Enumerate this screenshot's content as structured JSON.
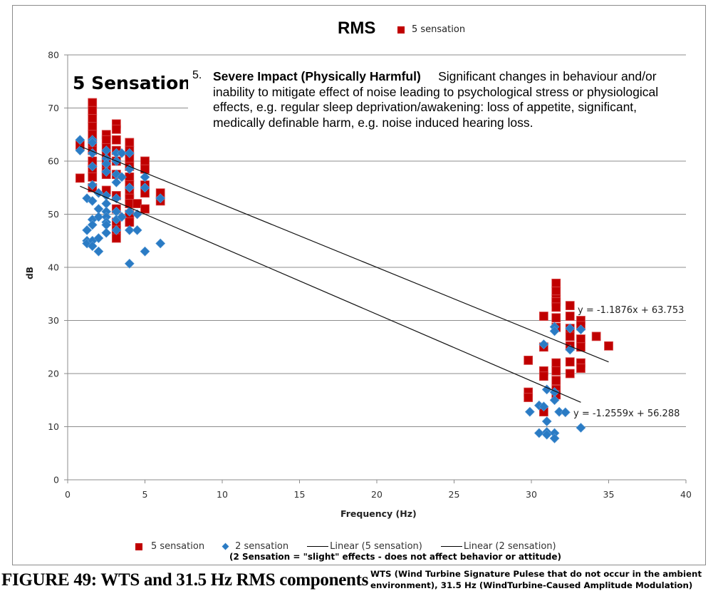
{
  "chart_data": {
    "type": "scatter",
    "title": "RMS",
    "xlabel": "Frequency (Hz)",
    "ylabel": "dB",
    "xlim": [
      0,
      40
    ],
    "ylim": [
      0,
      80
    ],
    "x_ticks": [
      "0",
      "5",
      "10",
      "15",
      "20",
      "25",
      "30",
      "35",
      "40"
    ],
    "y_ticks": [
      "0",
      "10",
      "20",
      "30",
      "40",
      "50",
      "60",
      "70",
      "80"
    ],
    "grid": "horizontal",
    "legend_top": {
      "label": "5 sensation",
      "color": "#c00000"
    },
    "legend": [
      {
        "label": "5 sensation",
        "marker": "square",
        "color": "#c00000"
      },
      {
        "label": "2 sensation",
        "marker": "diamond",
        "color": "#2a7bc4"
      },
      {
        "label": "Linear (5 sensation)",
        "marker": "line",
        "color": "#000000"
      },
      {
        "label": "Linear (2 sensation)",
        "marker": "line",
        "color": "#000000"
      }
    ],
    "series": [
      {
        "name": "5 sensation",
        "marker": "square",
        "color": "#c00000",
        "points": [
          [
            0.8,
            63
          ],
          [
            0.8,
            56.8
          ],
          [
            1.6,
            71
          ],
          [
            1.6,
            69.5
          ],
          [
            1.6,
            68
          ],
          [
            1.6,
            66.5
          ],
          [
            1.6,
            65
          ],
          [
            1.6,
            63.5
          ],
          [
            1.6,
            62
          ],
          [
            1.6,
            60
          ],
          [
            1.6,
            58.5
          ],
          [
            1.6,
            57
          ],
          [
            1.6,
            55
          ],
          [
            2.5,
            65
          ],
          [
            2.5,
            64
          ],
          [
            2.5,
            62.5
          ],
          [
            2.5,
            61
          ],
          [
            2.5,
            59.5
          ],
          [
            2.5,
            58
          ],
          [
            2.5,
            57.5
          ],
          [
            2.5,
            54.5
          ],
          [
            3.15,
            67
          ],
          [
            3.15,
            66
          ],
          [
            3.15,
            64
          ],
          [
            3.15,
            62
          ],
          [
            3.15,
            60
          ],
          [
            3.15,
            57.5
          ],
          [
            3.15,
            53.5
          ],
          [
            3.15,
            51
          ],
          [
            3.15,
            48.5
          ],
          [
            3.15,
            47
          ],
          [
            3.15,
            45.5
          ],
          [
            4,
            63.5
          ],
          [
            4,
            62
          ],
          [
            4,
            60.5
          ],
          [
            4,
            59
          ],
          [
            4,
            57
          ],
          [
            4,
            55.5
          ],
          [
            4,
            54
          ],
          [
            4,
            53
          ],
          [
            4,
            52
          ],
          [
            4,
            50
          ],
          [
            4,
            48.5
          ],
          [
            4.5,
            52
          ],
          [
            5,
            60
          ],
          [
            5,
            58.5
          ],
          [
            5,
            55.5
          ],
          [
            5,
            54
          ],
          [
            5,
            51
          ],
          [
            6,
            54
          ],
          [
            6,
            52.5
          ]
        ]
      },
      {
        "name": "2 sensation",
        "marker": "diamond",
        "color": "#2a7bc4",
        "points": [
          [
            0.8,
            64
          ],
          [
            0.8,
            62
          ],
          [
            1.25,
            53
          ],
          [
            1.25,
            47
          ],
          [
            1.25,
            45
          ],
          [
            1.25,
            44.5
          ],
          [
            1.6,
            64
          ],
          [
            1.6,
            63.5
          ],
          [
            1.6,
            61.5
          ],
          [
            1.6,
            59
          ],
          [
            1.6,
            55.5
          ],
          [
            1.6,
            52.5
          ],
          [
            1.6,
            49
          ],
          [
            1.6,
            48
          ],
          [
            1.6,
            45
          ],
          [
            1.6,
            44
          ],
          [
            2,
            54
          ],
          [
            2,
            51
          ],
          [
            2,
            49.5
          ],
          [
            2,
            45.5
          ],
          [
            2,
            43
          ],
          [
            2.5,
            62
          ],
          [
            2.5,
            60.5
          ],
          [
            2.5,
            59.5
          ],
          [
            2.5,
            58
          ],
          [
            2.5,
            53.5
          ],
          [
            2.5,
            52
          ],
          [
            2.5,
            50.5
          ],
          [
            2.5,
            49.5
          ],
          [
            2.5,
            48.5
          ],
          [
            2.5,
            48
          ],
          [
            2.5,
            46.5
          ],
          [
            3.15,
            61.5
          ],
          [
            3.15,
            60
          ],
          [
            3.15,
            57.5
          ],
          [
            3.15,
            56
          ],
          [
            3.15,
            53
          ],
          [
            3.15,
            50.5
          ],
          [
            3.15,
            49
          ],
          [
            3.15,
            47
          ],
          [
            3.5,
            61.5
          ],
          [
            3.5,
            57
          ],
          [
            3.5,
            49.5
          ],
          [
            4,
            61.5
          ],
          [
            4,
            58.5
          ],
          [
            4,
            55
          ],
          [
            4,
            50.5
          ],
          [
            4,
            47
          ],
          [
            4,
            40.7
          ],
          [
            4.5,
            50
          ],
          [
            4.5,
            47
          ],
          [
            5,
            57
          ],
          [
            5,
            55
          ],
          [
            5,
            43
          ],
          [
            6,
            53
          ],
          [
            6,
            44.5
          ]
        ]
      },
      {
        "name": "5 sensation",
        "marker": "square",
        "color": "#c00000",
        "points": [
          [
            29.8,
            22.5
          ],
          [
            29.8,
            16.5
          ],
          [
            29.8,
            15.5
          ],
          [
            30.8,
            30.8
          ],
          [
            30.8,
            25
          ],
          [
            30.8,
            20.5
          ],
          [
            30.8,
            19.5
          ],
          [
            30.8,
            12.8
          ],
          [
            31.6,
            37
          ],
          [
            31.6,
            35.5
          ],
          [
            31.6,
            34
          ],
          [
            31.6,
            33.5
          ],
          [
            31.6,
            32.5
          ],
          [
            31.6,
            30.5
          ],
          [
            31.6,
            28.7
          ],
          [
            31.6,
            22
          ],
          [
            31.6,
            20.5
          ],
          [
            31.6,
            18.7
          ],
          [
            31.6,
            17
          ],
          [
            31.6,
            16
          ],
          [
            32.5,
            32.8
          ],
          [
            32.5,
            30.8
          ],
          [
            32.5,
            28.5
          ],
          [
            32.5,
            27
          ],
          [
            32.5,
            25.2
          ],
          [
            32.5,
            22.2
          ],
          [
            32.5,
            20
          ],
          [
            33.2,
            30
          ],
          [
            33.2,
            29
          ],
          [
            33.2,
            26.5
          ],
          [
            33.2,
            25
          ],
          [
            33.2,
            22
          ],
          [
            33.2,
            21
          ],
          [
            34.2,
            27
          ],
          [
            35,
            25.2
          ]
        ]
      },
      {
        "name": "2 sensation",
        "marker": "diamond",
        "color": "#2a7bc4",
        "points": [
          [
            29.9,
            12.8
          ],
          [
            30.5,
            8.8
          ],
          [
            30.5,
            14
          ],
          [
            30.8,
            25.5
          ],
          [
            30.8,
            13.8
          ],
          [
            31,
            17
          ],
          [
            31,
            11
          ],
          [
            31,
            9
          ],
          [
            31,
            8.5
          ],
          [
            31.5,
            28.8
          ],
          [
            31.5,
            28
          ],
          [
            31.5,
            16.5
          ],
          [
            31.5,
            15
          ],
          [
            31.5,
            8.8
          ],
          [
            31.5,
            7.8
          ],
          [
            31.8,
            12.8
          ],
          [
            32.2,
            12.7
          ],
          [
            32.5,
            28.5
          ],
          [
            32.5,
            24.5
          ],
          [
            33.2,
            28.3
          ],
          [
            33.2,
            9.8
          ]
        ]
      }
    ],
    "trendlines": [
      {
        "name": "Linear (5 sensation)",
        "slope": -1.1876,
        "intercept": 63.753,
        "x_range": [
          0.8,
          35
        ],
        "label": "y = -1.1876x + 63.753"
      },
      {
        "name": "Linear (2 sensation)",
        "slope": -1.2559,
        "intercept": 56.288,
        "x_range": [
          0.8,
          33.2
        ],
        "label": "y = -1.2559x + 56.288"
      }
    ]
  },
  "annotations": {
    "sensation_heading": "5 Sensation:",
    "definition_number": "5.",
    "definition_title": "Severe Impact (Physically Harmful)",
    "definition_text": "Significant changes in behaviour and/or inability to mitigate effect of noise leading to psychological stress or physiological effects, e.g. regular sleep deprivation/awakening: loss of appetite, significant, medically definable harm, e.g. noise induced hearing loss.",
    "legend_note": "(2 Sensation = \"slight\" effects - does not affect behavior or attitude)"
  },
  "caption": {
    "figure_title": "FIGURE 49: WTS and 31.5 Hz RMS components",
    "figure_note": "WTS (Wind Turbine Signature Pulese that do not occur in the ambient environment), 31.5 Hz (WindTurbine-Caused Amplitude Modulation)"
  }
}
